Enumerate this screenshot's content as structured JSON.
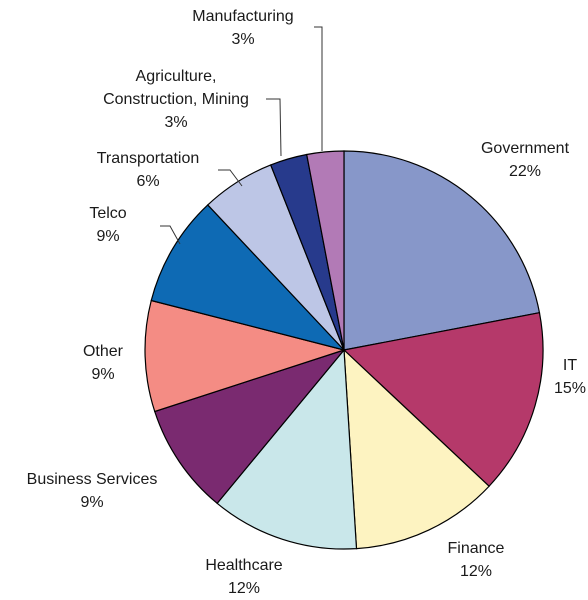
{
  "chart_data": {
    "type": "pie",
    "title": "",
    "slices": [
      {
        "label": "Government",
        "value": 22,
        "value_label": "22%",
        "color": "#8797c9"
      },
      {
        "label": "IT",
        "value": 15,
        "value_label": "15%",
        "color": "#b5396a"
      },
      {
        "label": "Finance",
        "value": 12,
        "value_label": "12%",
        "color": "#fdf3c1"
      },
      {
        "label": "Healthcare",
        "value": 12,
        "value_label": "12%",
        "color": "#c9e7ea"
      },
      {
        "label": "Business Services",
        "value": 9,
        "value_label": "9%",
        "color": "#7a2a70"
      },
      {
        "label": "Other",
        "value": 9,
        "value_label": "9%",
        "color": "#f48c84"
      },
      {
        "label": "Telco",
        "value": 9,
        "value_label": "9%",
        "color": "#0e6ab4"
      },
      {
        "label": "Transportation",
        "value": 6,
        "value_label": "6%",
        "color": "#bdc6e6"
      },
      {
        "label": "Agriculture,\nConstruction, Mining",
        "value": 3,
        "value_label": "3%",
        "color": "#273a8c"
      },
      {
        "label": "Manufacturing",
        "value": 3,
        "value_label": "3%",
        "color": "#b27ab6"
      }
    ]
  }
}
